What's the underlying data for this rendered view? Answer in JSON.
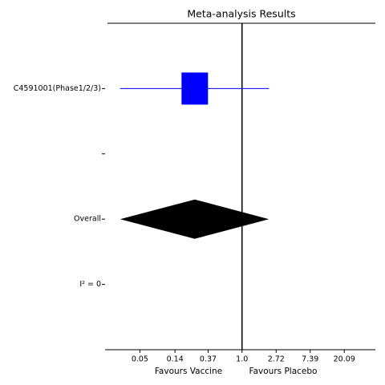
{
  "chart_data": {
    "type": "forest",
    "title": "Meta-analysis Results",
    "categories": [
      "C4591001(Phase1/2/3)",
      null,
      "Overall",
      "I² = 0"
    ],
    "estimates": [
      0.25,
      null,
      0.25,
      null
    ],
    "ci_low": [
      0.028,
      null,
      0.028,
      null
    ],
    "ci_high": [
      2.2,
      null,
      2.2,
      null
    ],
    "markers": [
      "box",
      null,
      "diamond",
      null
    ],
    "study_color": "#0000ff",
    "overall_color": "#000000",
    "x_scale": "log",
    "xlim": [
      0.018,
      50
    ],
    "xticks": [
      0.05,
      0.14,
      0.37,
      {
        "value": 1,
        "label": "1.0"
      },
      2.72,
      7.39,
      20.09
    ],
    "reference": 1,
    "xlabel_left": "Favours Vaccine",
    "xlabel_right": "Favours Placebo"
  }
}
